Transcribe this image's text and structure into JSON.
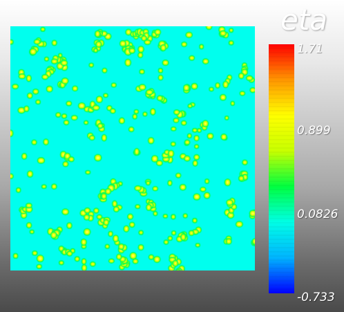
{
  "variable": {
    "name": "eta"
  },
  "colorbar": {
    "max": 1.71,
    "min": -0.733,
    "max_label": "1.71",
    "tick_labels": [
      "0.899",
      "0.0826"
    ],
    "min_label": "-0.733",
    "colors": [
      "#0000ff",
      "#00b4ff",
      "#00ffe6",
      "#00ff40",
      "#c8ff00",
      "#ffff00",
      "#ff9600",
      "#ff0000"
    ],
    "scheme": "rainbow"
  },
  "field": {
    "background_color": "#00ffee",
    "feature_colors": [
      "#00ff55",
      "#d6ff00",
      "#ffff44"
    ]
  }
}
